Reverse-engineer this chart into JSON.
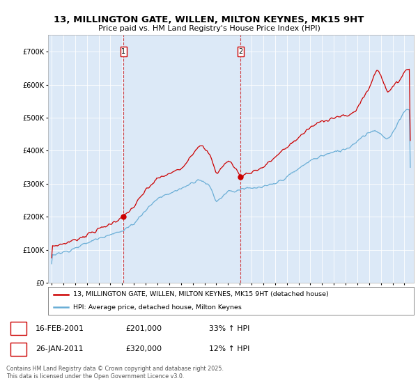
{
  "title": "13, MILLINGTON GATE, WILLEN, MILTON KEYNES, MK15 9HT",
  "subtitle": "Price paid vs. HM Land Registry's House Price Index (HPI)",
  "background_color": "#dce9f7",
  "red_color": "#cc0000",
  "blue_color": "#6aaed6",
  "marker1_x": 2001.12,
  "marker2_x": 2011.07,
  "legend_line1": "13, MILLINGTON GATE, WILLEN, MILTON KEYNES, MK15 9HT (detached house)",
  "legend_line2": "HPI: Average price, detached house, Milton Keynes",
  "footer": "Contains HM Land Registry data © Crown copyright and database right 2025.\nThis data is licensed under the Open Government Licence v3.0.",
  "ann1_date": "16-FEB-2001",
  "ann1_price": "£201,000",
  "ann1_hpi": "33% ↑ HPI",
  "ann2_date": "26-JAN-2011",
  "ann2_price": "£320,000",
  "ann2_hpi": "12% ↑ HPI"
}
